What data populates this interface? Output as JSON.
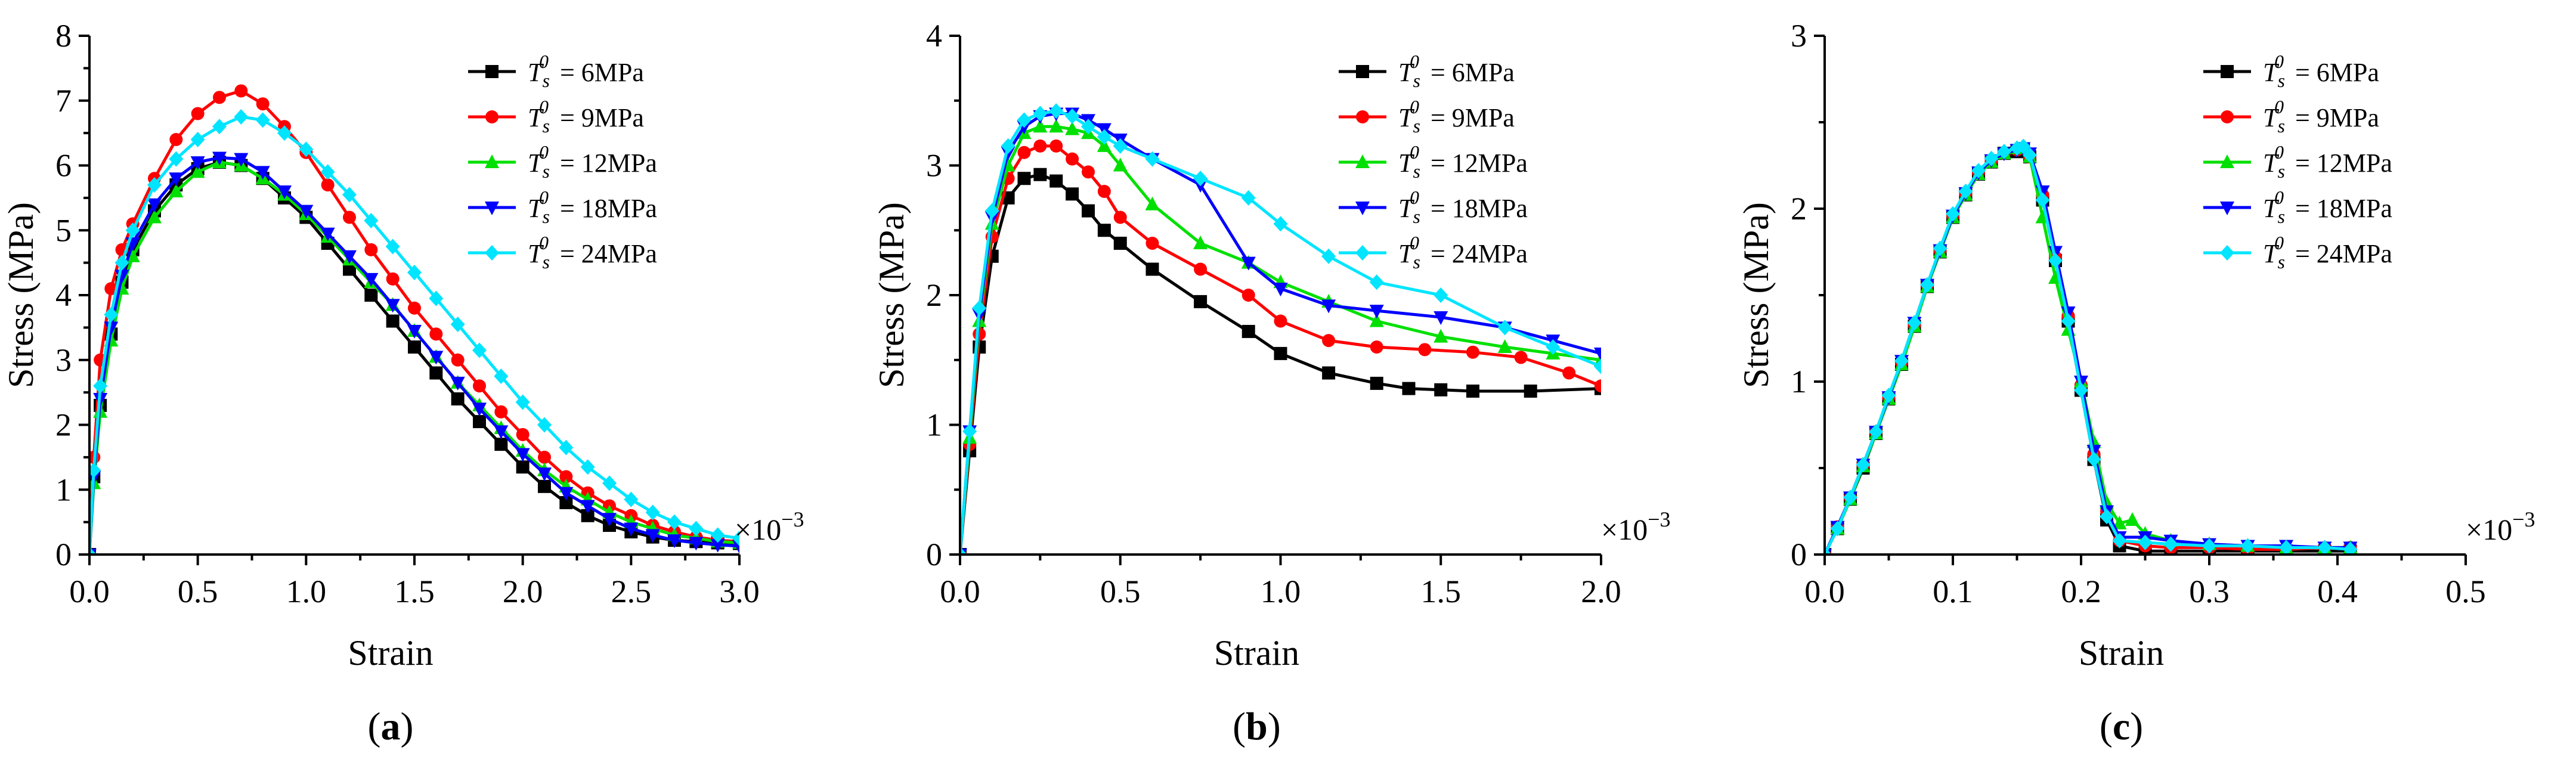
{
  "legend_symbol": {
    "base": "T",
    "sub": "s",
    "sup": "0"
  },
  "chart_data": [
    {
      "type": "line",
      "panel_label": "a",
      "xlabel": "Strain",
      "ylabel": "Stress (MPa)",
      "x_multiplier": "×10",
      "x_multiplier_exp": "−3",
      "xlim": [
        0,
        3.0
      ],
      "ylim": [
        0,
        8
      ],
      "xticks": [
        "0.0",
        "0.5",
        "1.0",
        "1.5",
        "2.0",
        "2.5",
        "3.0"
      ],
      "yticks": [
        "0",
        "1",
        "2",
        "3",
        "4",
        "5",
        "6",
        "7",
        "8"
      ],
      "series": [
        {
          "name": "= 6MPa",
          "color": "#000000",
          "marker": "square",
          "x": [
            0,
            0.02,
            0.05,
            0.1,
            0.15,
            0.2,
            0.3,
            0.4,
            0.5,
            0.6,
            0.7,
            0.8,
            0.9,
            1.0,
            1.1,
            1.2,
            1.3,
            1.4,
            1.5,
            1.6,
            1.7,
            1.8,
            1.9,
            2.0,
            2.1,
            2.2,
            2.3,
            2.4,
            2.5,
            2.6,
            2.7,
            2.8,
            2.9,
            3.0
          ],
          "y": [
            0,
            1.2,
            2.3,
            3.4,
            4.2,
            4.7,
            5.3,
            5.7,
            5.95,
            6.05,
            6.0,
            5.8,
            5.5,
            5.2,
            4.8,
            4.4,
            4.0,
            3.6,
            3.2,
            2.8,
            2.4,
            2.05,
            1.7,
            1.35,
            1.05,
            0.8,
            0.6,
            0.45,
            0.35,
            0.27,
            0.22,
            0.2,
            0.18,
            0.17
          ]
        },
        {
          "name": "= 9MPa",
          "color": "#ff0000",
          "marker": "circle",
          "x": [
            0,
            0.02,
            0.05,
            0.1,
            0.15,
            0.2,
            0.3,
            0.4,
            0.5,
            0.6,
            0.7,
            0.8,
            0.9,
            1.0,
            1.1,
            1.2,
            1.3,
            1.4,
            1.5,
            1.6,
            1.7,
            1.8,
            1.9,
            2.0,
            2.1,
            2.2,
            2.3,
            2.4,
            2.5,
            2.6,
            2.7,
            2.8,
            2.9,
            3.0
          ],
          "y": [
            0,
            1.5,
            3.0,
            4.1,
            4.7,
            5.1,
            5.8,
            6.4,
            6.8,
            7.05,
            7.15,
            6.95,
            6.6,
            6.2,
            5.7,
            5.2,
            4.7,
            4.25,
            3.8,
            3.4,
            3.0,
            2.6,
            2.2,
            1.85,
            1.5,
            1.2,
            0.95,
            0.75,
            0.6,
            0.45,
            0.35,
            0.27,
            0.22,
            0.2
          ]
        },
        {
          "name": "= 12MPa",
          "color": "#00e000",
          "marker": "triangle-up",
          "x": [
            0,
            0.02,
            0.05,
            0.1,
            0.15,
            0.2,
            0.3,
            0.4,
            0.5,
            0.6,
            0.7,
            0.8,
            0.9,
            1.0,
            1.1,
            1.2,
            1.3,
            1.4,
            1.5,
            1.6,
            1.7,
            1.8,
            1.9,
            2.0,
            2.1,
            2.2,
            2.3,
            2.4,
            2.5,
            2.6,
            2.7,
            2.8,
            2.9,
            3.0
          ],
          "y": [
            0,
            1.1,
            2.2,
            3.3,
            4.1,
            4.6,
            5.2,
            5.6,
            5.9,
            6.05,
            6.0,
            5.8,
            5.55,
            5.25,
            4.9,
            4.55,
            4.2,
            3.85,
            3.45,
            3.05,
            2.65,
            2.3,
            1.95,
            1.6,
            1.3,
            1.05,
            0.85,
            0.65,
            0.5,
            0.4,
            0.3,
            0.25,
            0.2,
            0.18
          ]
        },
        {
          "name": "= 18MPa",
          "color": "#0000ff",
          "marker": "triangle-down",
          "x": [
            0,
            0.02,
            0.05,
            0.1,
            0.15,
            0.2,
            0.3,
            0.4,
            0.5,
            0.6,
            0.7,
            0.8,
            0.9,
            1.0,
            1.1,
            1.2,
            1.3,
            1.4,
            1.5,
            1.6,
            1.7,
            1.8,
            1.9,
            2.0,
            2.1,
            2.2,
            2.3,
            2.4,
            2.5,
            2.6,
            2.7,
            2.8,
            2.9,
            3.0
          ],
          "y": [
            0,
            1.2,
            2.4,
            3.5,
            4.3,
            4.8,
            5.4,
            5.8,
            6.05,
            6.12,
            6.1,
            5.9,
            5.6,
            5.3,
            4.95,
            4.6,
            4.25,
            3.85,
            3.45,
            3.05,
            2.65,
            2.25,
            1.9,
            1.55,
            1.25,
            0.95,
            0.75,
            0.55,
            0.4,
            0.3,
            0.22,
            0.18,
            0.15,
            0.13
          ]
        },
        {
          "name": "= 24MPa",
          "color": "#00e5ff",
          "marker": "diamond",
          "x": [
            0,
            0.02,
            0.05,
            0.1,
            0.15,
            0.2,
            0.3,
            0.4,
            0.5,
            0.6,
            0.7,
            0.8,
            0.9,
            1.0,
            1.1,
            1.2,
            1.3,
            1.4,
            1.5,
            1.6,
            1.7,
            1.8,
            1.9,
            2.0,
            2.1,
            2.2,
            2.3,
            2.4,
            2.5,
            2.6,
            2.7,
            2.8,
            2.9,
            3.0
          ],
          "y": [
            0,
            1.3,
            2.6,
            3.7,
            4.5,
            5.0,
            5.7,
            6.1,
            6.4,
            6.6,
            6.75,
            6.7,
            6.5,
            6.25,
            5.9,
            5.55,
            5.15,
            4.75,
            4.35,
            3.95,
            3.55,
            3.15,
            2.75,
            2.35,
            2.0,
            1.65,
            1.35,
            1.1,
            0.85,
            0.65,
            0.5,
            0.4,
            0.3,
            0.25
          ]
        }
      ]
    },
    {
      "type": "line",
      "panel_label": "b",
      "xlabel": "Strain",
      "ylabel": "Stress (MPa)",
      "x_multiplier": "×10",
      "x_multiplier_exp": "−3",
      "xlim": [
        0,
        2.0
      ],
      "ylim": [
        0,
        4
      ],
      "xticks": [
        "0.0",
        "0.5",
        "1.0",
        "1.5",
        "2.0"
      ],
      "yticks": [
        "0",
        "1",
        "2",
        "3",
        "4"
      ],
      "series": [
        {
          "name": "= 6MPa",
          "color": "#000000",
          "marker": "square",
          "x": [
            0,
            0.03,
            0.06,
            0.1,
            0.15,
            0.2,
            0.25,
            0.3,
            0.35,
            0.4,
            0.45,
            0.5,
            0.6,
            0.75,
            0.9,
            1.0,
            1.15,
            1.3,
            1.4,
            1.5,
            1.6,
            1.78,
            2.0
          ],
          "y": [
            0,
            0.8,
            1.6,
            2.3,
            2.75,
            2.9,
            2.93,
            2.88,
            2.78,
            2.65,
            2.5,
            2.4,
            2.2,
            1.95,
            1.72,
            1.55,
            1.4,
            1.32,
            1.28,
            1.27,
            1.26,
            1.26,
            1.28
          ]
        },
        {
          "name": "= 9MPa",
          "color": "#ff0000",
          "marker": "circle",
          "x": [
            0,
            0.03,
            0.06,
            0.1,
            0.15,
            0.2,
            0.25,
            0.3,
            0.35,
            0.4,
            0.45,
            0.5,
            0.6,
            0.75,
            0.9,
            1.0,
            1.15,
            1.3,
            1.45,
            1.6,
            1.75,
            1.9,
            2.0
          ],
          "y": [
            0,
            0.85,
            1.7,
            2.45,
            2.9,
            3.1,
            3.15,
            3.15,
            3.05,
            2.95,
            2.8,
            2.6,
            2.4,
            2.2,
            2.0,
            1.8,
            1.65,
            1.6,
            1.58,
            1.56,
            1.52,
            1.4,
            1.3
          ]
        },
        {
          "name": "= 12MPa",
          "color": "#00e000",
          "marker": "triangle-up",
          "x": [
            0,
            0.03,
            0.06,
            0.1,
            0.15,
            0.2,
            0.25,
            0.3,
            0.35,
            0.4,
            0.45,
            0.5,
            0.6,
            0.75,
            0.9,
            1.0,
            1.15,
            1.3,
            1.5,
            1.7,
            1.85,
            2.0
          ],
          "y": [
            0,
            0.9,
            1.8,
            2.55,
            3.0,
            3.25,
            3.3,
            3.3,
            3.28,
            3.25,
            3.15,
            3.0,
            2.7,
            2.4,
            2.25,
            2.1,
            1.95,
            1.8,
            1.68,
            1.6,
            1.55,
            1.5
          ]
        },
        {
          "name": "= 18MPa",
          "color": "#0000ff",
          "marker": "triangle-down",
          "x": [
            0,
            0.03,
            0.06,
            0.1,
            0.15,
            0.2,
            0.25,
            0.3,
            0.35,
            0.4,
            0.45,
            0.5,
            0.6,
            0.75,
            0.9,
            1.0,
            1.15,
            1.3,
            1.5,
            1.7,
            1.85,
            2.0
          ],
          "y": [
            0,
            0.95,
            1.85,
            2.6,
            3.1,
            3.3,
            3.38,
            3.4,
            3.4,
            3.35,
            3.28,
            3.2,
            3.05,
            2.85,
            2.25,
            2.05,
            1.92,
            1.88,
            1.83,
            1.75,
            1.65,
            1.55
          ]
        },
        {
          "name": "= 24MPa",
          "color": "#00e5ff",
          "marker": "diamond",
          "x": [
            0,
            0.03,
            0.06,
            0.1,
            0.15,
            0.2,
            0.25,
            0.3,
            0.35,
            0.4,
            0.45,
            0.5,
            0.6,
            0.75,
            0.9,
            1.0,
            1.15,
            1.3,
            1.5,
            1.7,
            1.85,
            2.0
          ],
          "y": [
            0,
            0.95,
            1.9,
            2.65,
            3.15,
            3.35,
            3.4,
            3.42,
            3.38,
            3.3,
            3.22,
            3.15,
            3.05,
            2.9,
            2.75,
            2.55,
            2.3,
            2.1,
            2.0,
            1.75,
            1.6,
            1.45
          ]
        }
      ]
    },
    {
      "type": "line",
      "panel_label": "c",
      "xlabel": "Strain",
      "ylabel": "Stress (MPa)",
      "x_multiplier": "×10",
      "x_multiplier_exp": "−3",
      "xlim": [
        0,
        0.5
      ],
      "ylim": [
        0,
        3
      ],
      "xticks": [
        "0.0",
        "0.1",
        "0.2",
        "0.3",
        "0.4",
        "0.5"
      ],
      "yticks": [
        "0",
        "1",
        "2",
        "3"
      ],
      "series": [
        {
          "name": "= 6MPa",
          "color": "#000000",
          "marker": "square",
          "x": [
            0,
            0.01,
            0.02,
            0.03,
            0.04,
            0.05,
            0.06,
            0.07,
            0.08,
            0.09,
            0.1,
            0.11,
            0.12,
            0.13,
            0.14,
            0.15,
            0.155,
            0.16,
            0.17,
            0.18,
            0.19,
            0.2,
            0.21,
            0.22,
            0.23,
            0.25,
            0.27,
            0.3,
            0.33,
            0.36,
            0.39,
            0.41
          ],
          "y": [
            0,
            0.15,
            0.32,
            0.5,
            0.7,
            0.9,
            1.1,
            1.32,
            1.55,
            1.75,
            1.95,
            2.08,
            2.2,
            2.27,
            2.32,
            2.33,
            2.34,
            2.3,
            2.05,
            1.7,
            1.35,
            0.95,
            0.55,
            0.2,
            0.05,
            0.02,
            0.02,
            0.02,
            0.02,
            0.02,
            0.02,
            0.02
          ]
        },
        {
          "name": "= 9MPa",
          "color": "#ff0000",
          "marker": "circle",
          "x": [
            0,
            0.01,
            0.02,
            0.03,
            0.04,
            0.05,
            0.06,
            0.07,
            0.08,
            0.09,
            0.1,
            0.11,
            0.12,
            0.13,
            0.14,
            0.15,
            0.155,
            0.16,
            0.17,
            0.18,
            0.19,
            0.2,
            0.21,
            0.22,
            0.23,
            0.25,
            0.27,
            0.3,
            0.33,
            0.36,
            0.39,
            0.41
          ],
          "y": [
            0,
            0.16,
            0.33,
            0.52,
            0.71,
            0.91,
            1.11,
            1.33,
            1.56,
            1.76,
            1.96,
            2.09,
            2.21,
            2.28,
            2.32,
            2.34,
            2.35,
            2.3,
            2.08,
            1.72,
            1.38,
            0.98,
            0.58,
            0.25,
            0.08,
            0.05,
            0.04,
            0.04,
            0.03,
            0.03,
            0.04,
            0.04
          ]
        },
        {
          "name": "= 12MPa",
          "color": "#00e000",
          "marker": "triangle-up",
          "x": [
            0,
            0.01,
            0.02,
            0.03,
            0.04,
            0.05,
            0.06,
            0.07,
            0.08,
            0.09,
            0.1,
            0.11,
            0.12,
            0.13,
            0.14,
            0.15,
            0.155,
            0.16,
            0.17,
            0.18,
            0.19,
            0.2,
            0.21,
            0.22,
            0.23,
            0.24,
            0.25,
            0.27,
            0.3,
            0.33,
            0.36,
            0.39,
            0.41
          ],
          "y": [
            0,
            0.15,
            0.32,
            0.51,
            0.7,
            0.9,
            1.1,
            1.32,
            1.55,
            1.75,
            1.95,
            2.08,
            2.2,
            2.27,
            2.32,
            2.35,
            2.36,
            2.3,
            1.95,
            1.6,
            1.3,
            1.0,
            0.65,
            0.3,
            0.18,
            0.2,
            0.12,
            0.08,
            0.06,
            0.05,
            0.04,
            0.04,
            0.04
          ]
        },
        {
          "name": "= 18MPa",
          "color": "#0000ff",
          "marker": "triangle-down",
          "x": [
            0,
            0.01,
            0.02,
            0.03,
            0.04,
            0.05,
            0.06,
            0.07,
            0.08,
            0.09,
            0.1,
            0.11,
            0.12,
            0.13,
            0.14,
            0.15,
            0.155,
            0.16,
            0.17,
            0.18,
            0.19,
            0.2,
            0.21,
            0.22,
            0.23,
            0.25,
            0.27,
            0.3,
            0.33,
            0.36,
            0.39,
            0.41
          ],
          "y": [
            0,
            0.16,
            0.33,
            0.52,
            0.71,
            0.91,
            1.12,
            1.34,
            1.56,
            1.76,
            1.96,
            2.09,
            2.21,
            2.28,
            2.32,
            2.34,
            2.35,
            2.32,
            2.1,
            1.75,
            1.4,
            1.0,
            0.6,
            0.25,
            0.1,
            0.1,
            0.08,
            0.06,
            0.05,
            0.05,
            0.04,
            0.04
          ]
        },
        {
          "name": "= 24MPa",
          "color": "#00e5ff",
          "marker": "diamond",
          "x": [
            0,
            0.01,
            0.02,
            0.03,
            0.04,
            0.05,
            0.06,
            0.07,
            0.08,
            0.09,
            0.1,
            0.11,
            0.12,
            0.13,
            0.14,
            0.15,
            0.155,
            0.16,
            0.17,
            0.18,
            0.19,
            0.2,
            0.21,
            0.22,
            0.23,
            0.25,
            0.27,
            0.3,
            0.33,
            0.36,
            0.39,
            0.41
          ],
          "y": [
            0,
            0.15,
            0.33,
            0.52,
            0.71,
            0.92,
            1.12,
            1.34,
            1.56,
            1.77,
            1.97,
            2.1,
            2.22,
            2.29,
            2.33,
            2.35,
            2.36,
            2.31,
            2.05,
            1.7,
            1.35,
            0.95,
            0.55,
            0.22,
            0.08,
            0.07,
            0.06,
            0.05,
            0.05,
            0.04,
            0.04,
            0.03
          ]
        }
      ]
    }
  ]
}
